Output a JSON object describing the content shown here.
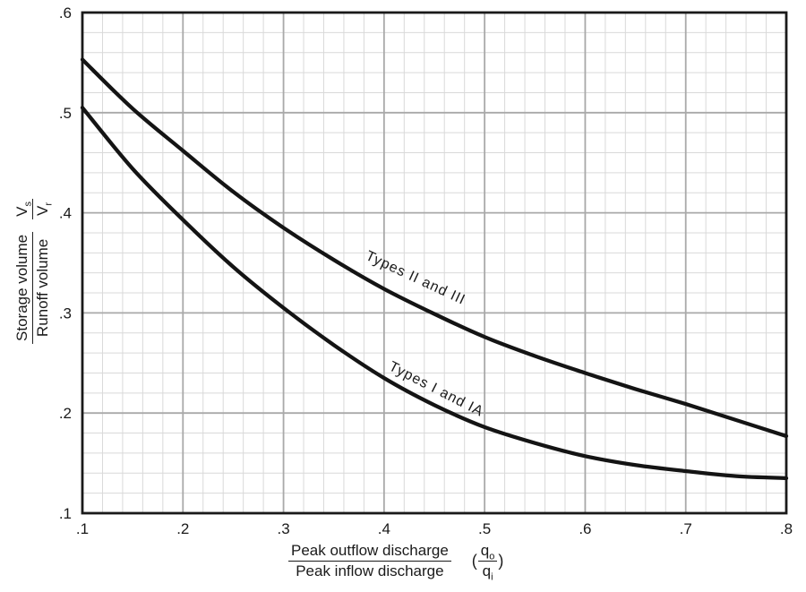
{
  "colors": {
    "curve": "#141414",
    "grid_minor": "#d9d9d9",
    "grid_major": "#a9a9a9",
    "frame": "#1a1a1a",
    "text": "#1a1a1a"
  },
  "chart_data": {
    "type": "line",
    "title": "",
    "x": [
      0.1,
      0.15,
      0.2,
      0.25,
      0.3,
      0.35,
      0.4,
      0.45,
      0.5,
      0.55,
      0.6,
      0.65,
      0.7,
      0.75,
      0.8
    ],
    "series": [
      {
        "name": "Types II and III",
        "values": [
          0.553,
          0.504,
          0.462,
          0.421,
          0.385,
          0.353,
          0.324,
          0.299,
          0.276,
          0.257,
          0.24,
          0.224,
          0.209,
          0.193,
          0.177
        ]
      },
      {
        "name": "Types I and IA",
        "values": [
          0.505,
          0.444,
          0.393,
          0.346,
          0.305,
          0.268,
          0.235,
          0.208,
          0.186,
          0.17,
          0.157,
          0.148,
          0.142,
          0.137,
          0.135
        ]
      }
    ],
    "annotations": [
      {
        "text": "Types II and III",
        "x": 0.4295,
        "y": 0.331,
        "rotate": 25
      },
      {
        "text": "Types I and IA",
        "x": 0.45,
        "y": 0.22,
        "rotate": 27
      }
    ],
    "x_axis": {
      "range": [
        0.1,
        0.8
      ],
      "ticks": [
        ".1",
        ".2",
        ".3",
        ".4",
        ".5",
        ".6",
        ".7",
        ".8"
      ],
      "label_fraction": {
        "top": "Peak outflow discharge",
        "bottom": "Peak inflow discharge"
      },
      "symbol": {
        "open": "(",
        "top_base": "q",
        "top_sub": "o",
        "bottom_base": "q",
        "bottom_sub": "i",
        "close": ")"
      }
    },
    "y_axis": {
      "range": [
        0.1,
        0.6
      ],
      "ticks": [
        ".6",
        ".5",
        ".4",
        ".3",
        ".2",
        ".1"
      ],
      "label_fraction": {
        "top": "Storage volume",
        "bottom": "Runoff volume"
      },
      "symbol": {
        "top_base": "V",
        "top_sub": "s",
        "bottom_base": "V",
        "bottom_sub": "r"
      }
    },
    "grid": {
      "minor_step": 0.02,
      "major_step": 0.1,
      "grid_on": true
    },
    "legend": "labels-on-curves"
  }
}
